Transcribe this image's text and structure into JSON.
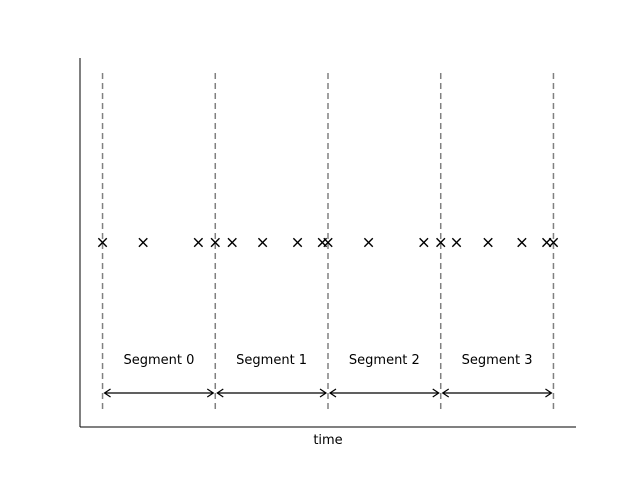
{
  "chart_data": {
    "type": "scatter",
    "title": "",
    "xlabel": "time",
    "ylabel": "",
    "xlim": [
      -0.2,
      4.2
    ],
    "ylim": [
      0,
      1
    ],
    "grid": false,
    "boundaries": [
      0,
      1,
      2,
      3,
      4
    ],
    "marker": "x",
    "points_y": 0.5,
    "points_x": [
      0.0,
      0.36,
      0.85,
      1.0,
      1.15,
      1.42,
      1.73,
      1.95,
      2.0,
      2.36,
      2.85,
      3.0,
      3.14,
      3.42,
      3.72,
      3.94,
      4.0
    ],
    "segments": [
      {
        "label": "Segment 0",
        "start": 0,
        "end": 1
      },
      {
        "label": "Segment 1",
        "start": 1,
        "end": 2
      },
      {
        "label": "Segment 2",
        "start": 2,
        "end": 3
      },
      {
        "label": "Segment 3",
        "start": 3,
        "end": 4
      }
    ],
    "colors": {
      "boundary": "#808080",
      "marker": "#000000",
      "arrow": "#000000"
    }
  }
}
